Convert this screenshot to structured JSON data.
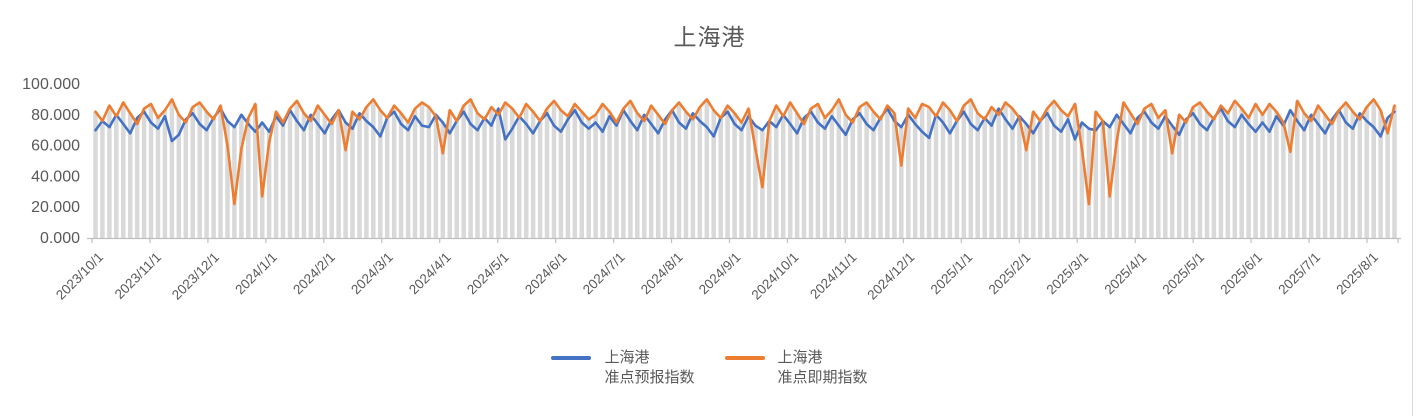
{
  "chart_data": {
    "type": "line",
    "title": "上海港",
    "xlabel": "",
    "ylabel": "",
    "ylim": [
      0,
      100
    ],
    "y_ticks": [
      0,
      20,
      40,
      60,
      80,
      100
    ],
    "y_tick_decimals": 3,
    "grid": "drop-lines",
    "legend_position": "bottom",
    "x_tick_labels": [
      "2023/10/1",
      "2023/11/1",
      "2023/12/1",
      "2024/1/1",
      "2024/2/1",
      "2024/3/1",
      "2024/4/1",
      "2024/5/1",
      "2024/6/1",
      "2024/7/1",
      "2024/8/1",
      "2024/9/1",
      "2024/10/1",
      "2024/11/1",
      "2024/12/1",
      "2025/1/1",
      "2025/2/1",
      "2025/3/1",
      "2025/4/1",
      "2025/5/1",
      "2025/6/1",
      "2025/7/1",
      "2025/8/1"
    ],
    "colors": {
      "forecast": "#4472C4",
      "spot": "#ED7D31",
      "drop_line": "#D9D9D9",
      "axis_line": "#BFBFBF",
      "axis_text": "#595959",
      "title_text": "#595959"
    },
    "series": [
      {
        "name": "上海港准点预报指数",
        "legend_line1": "上海港",
        "legend_line2": "准点预报指数",
        "color": "#4472C4",
        "values": [
          70,
          76,
          72,
          80,
          74,
          68,
          78,
          82,
          75,
          71,
          79,
          63,
          67,
          77,
          81,
          74,
          70,
          78,
          84,
          76,
          72,
          80,
          74,
          69,
          75,
          69,
          79,
          73,
          83,
          76,
          70,
          80,
          74,
          68,
          77,
          83,
          75,
          71,
          81,
          76,
          72,
          66,
          78,
          82,
          74,
          70,
          79,
          73,
          72,
          80,
          75,
          68,
          76,
          82,
          74,
          70,
          78,
          73,
          84,
          64,
          71,
          79,
          74,
          68,
          76,
          81,
          73,
          69,
          77,
          83,
          75,
          71,
          75,
          69,
          79,
          73,
          83,
          76,
          70,
          80,
          74,
          68,
          77,
          83,
          75,
          71,
          81,
          76,
          72,
          66,
          78,
          82,
          74,
          70,
          79,
          73,
          70,
          76,
          72,
          80,
          74,
          68,
          78,
          82,
          75,
          71,
          79,
          73,
          67,
          77,
          81,
          74,
          70,
          78,
          84,
          76,
          72,
          80,
          74,
          69,
          65,
          80,
          75,
          68,
          76,
          82,
          74,
          70,
          78,
          73,
          84,
          77,
          71,
          79,
          74,
          68,
          76,
          81,
          73,
          69,
          77,
          64,
          75,
          71,
          70,
          76,
          72,
          80,
          74,
          68,
          78,
          82,
          75,
          71,
          79,
          73,
          67,
          77,
          81,
          74,
          70,
          78,
          84,
          76,
          72,
          80,
          74,
          69,
          75,
          69,
          79,
          73,
          83,
          76,
          70,
          80,
          74,
          68,
          77,
          83,
          75,
          71,
          81,
          76,
          72,
          66,
          78,
          82
        ]
      },
      {
        "name": "上海港准点即期指数",
        "legend_line1": "上海港",
        "legend_line2": "准点即期指数",
        "color": "#ED7D31",
        "values": [
          82,
          76,
          86,
          79,
          88,
          81,
          74,
          84,
          87,
          78,
          83,
          90,
          80,
          75,
          85,
          88,
          82,
          77,
          86,
          60,
          22,
          58,
          78,
          87,
          27,
          62,
          82,
          75,
          84,
          89,
          81,
          76,
          86,
          80,
          74,
          83,
          57,
          82,
          77,
          85,
          90,
          83,
          78,
          86,
          81,
          75,
          84,
          88,
          85,
          79,
          55,
          83,
          76,
          86,
          90,
          81,
          77,
          85,
          80,
          88,
          84,
          78,
          87,
          82,
          76,
          84,
          89,
          83,
          79,
          87,
          82,
          77,
          80,
          87,
          82,
          75,
          84,
          89,
          81,
          76,
          86,
          80,
          74,
          83,
          88,
          82,
          77,
          85,
          90,
          83,
          78,
          86,
          81,
          75,
          84,
          58,
          33,
          76,
          86,
          79,
          88,
          81,
          74,
          84,
          87,
          78,
          83,
          90,
          80,
          75,
          85,
          88,
          82,
          77,
          86,
          81,
          47,
          84,
          78,
          87,
          85,
          79,
          88,
          83,
          76,
          86,
          90,
          81,
          77,
          85,
          80,
          88,
          84,
          78,
          57,
          82,
          76,
          84,
          89,
          83,
          79,
          87,
          58,
          22,
          82,
          76,
          27,
          63,
          88,
          81,
          74,
          84,
          87,
          78,
          83,
          55,
          80,
          75,
          85,
          88,
          82,
          77,
          86,
          81,
          89,
          84,
          78,
          87,
          80,
          87,
          82,
          75,
          56,
          89,
          81,
          76,
          86,
          80,
          74,
          83,
          88,
          82,
          77,
          85,
          90,
          83,
          68,
          86
        ]
      }
    ]
  }
}
